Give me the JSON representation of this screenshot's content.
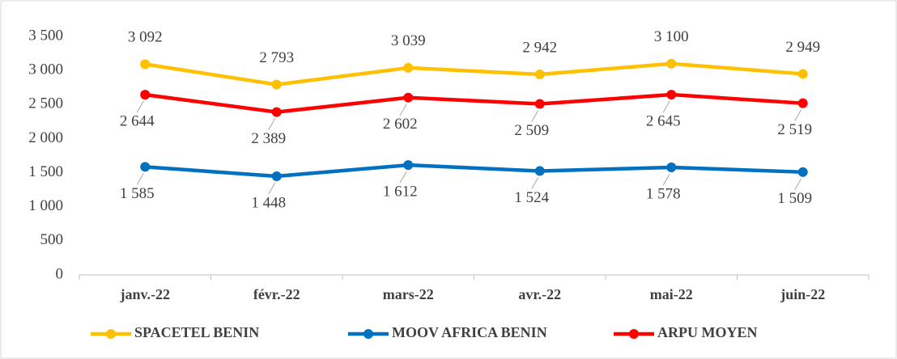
{
  "chart_data": {
    "type": "line",
    "categories": [
      "janv.-22",
      "févr.-22",
      "mars-22",
      "avr.-22",
      "mai-22",
      "juin-22"
    ],
    "series": [
      {
        "name": "SPACETEL BENIN",
        "color": "#FFC000",
        "values": [
          3092,
          2793,
          3039,
          2942,
          3100,
          2949
        ],
        "value_labels": [
          "3 092",
          "2 793",
          "3 039",
          "2 942",
          "3 100",
          "2 949"
        ],
        "label_position": "above"
      },
      {
        "name": "MOOV AFRICA BENIN",
        "color": "#0070C0",
        "values": [
          1585,
          1448,
          1612,
          1524,
          1578,
          1509
        ],
        "value_labels": [
          "1 585",
          "1 448",
          "1 612",
          "1 524",
          "1 578",
          "1 509"
        ],
        "label_position": "below"
      },
      {
        "name": "ARPU MOYEN",
        "color": "#FF0000",
        "values": [
          2644,
          2389,
          2602,
          2509,
          2645,
          2519
        ],
        "value_labels": [
          "2 644",
          "2 389",
          "2 602",
          "2 509",
          "2 645",
          "2 519"
        ],
        "label_position": "below"
      }
    ],
    "ylim": [
      0,
      3500
    ],
    "yticks": [
      0,
      500,
      {
        "value": 1000,
        "label": "1 000"
      },
      {
        "value": 1500,
        "label": "1 500"
      },
      {
        "value": 2000,
        "label": "2 000"
      },
      {
        "value": 2500,
        "label": "2 500"
      },
      {
        "value": 3000,
        "label": "3 000"
      },
      {
        "value": 3500,
        "label": "3 500"
      }
    ],
    "grid": false,
    "legend": "bottom"
  }
}
